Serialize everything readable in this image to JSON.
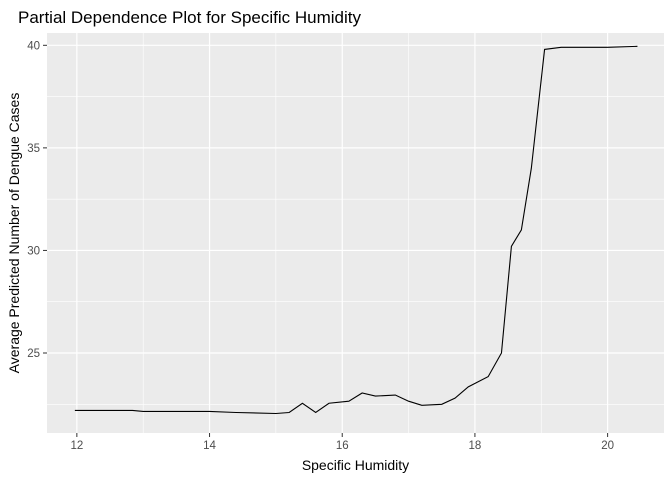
{
  "chart_data": {
    "type": "line",
    "title": "Partial Dependence Plot for Specific Humidity",
    "xlabel": "Specific Humidity",
    "ylabel": "Average Predicted Number of Dengue Cases",
    "xlim": [
      11.55,
      20.85
    ],
    "ylim": [
      21.1,
      40.6
    ],
    "x_ticks": [
      12,
      14,
      16,
      18,
      20
    ],
    "y_ticks": [
      25,
      30,
      35,
      40
    ],
    "grid": true,
    "legend": "none",
    "colors": {
      "panel": "#ebebeb",
      "grid": "#ffffff",
      "line": "#000000",
      "tick": "#4d4d4d"
    },
    "series": [
      {
        "x": [
          11.97,
          12.84,
          13.0,
          14.0,
          14.4,
          15.0,
          15.2,
          15.4,
          15.6,
          15.8,
          16.1,
          16.3,
          16.5,
          16.8,
          17.0,
          17.2,
          17.5,
          17.7,
          17.9,
          18.2,
          18.4,
          18.55,
          18.7,
          18.85,
          19.05,
          19.3,
          20.0,
          20.45
        ],
        "y": [
          22.2,
          22.2,
          22.15,
          22.15,
          22.1,
          22.05,
          22.1,
          22.55,
          22.1,
          22.55,
          22.65,
          23.05,
          22.9,
          22.95,
          22.65,
          22.45,
          22.5,
          22.8,
          23.35,
          23.85,
          25.0,
          30.2,
          31.0,
          34.0,
          39.8,
          39.9,
          39.9,
          39.95
        ]
      }
    ]
  }
}
